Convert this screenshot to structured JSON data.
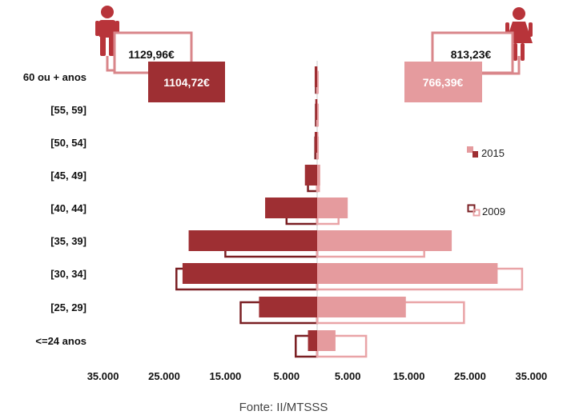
{
  "chart_data": {
    "type": "bar",
    "orientation": "horizontal-population-pyramid",
    "categories": [
      "<=24 anos",
      "[25, 29]",
      "[30, 34]",
      "[35, 39]",
      "[40, 44]",
      "[45, 49]",
      "[50, 54]",
      "[55, 59]",
      "60 ou + anos"
    ],
    "series": [
      {
        "name": "2015",
        "group": "homens",
        "values": [
          1500,
          9500,
          22000,
          21000,
          8500,
          2000,
          400,
          300,
          400
        ]
      },
      {
        "name": "2009",
        "group": "homens",
        "values": [
          3500,
          12500,
          23000,
          15000,
          5000,
          1500,
          300,
          200,
          200
        ]
      },
      {
        "name": "2015",
        "group": "mulheres",
        "values": [
          3000,
          14500,
          29500,
          22000,
          5000,
          500,
          200,
          100,
          100
        ]
      },
      {
        "name": "2009",
        "group": "mulheres",
        "values": [
          8000,
          24000,
          33500,
          17500,
          3500,
          300,
          100,
          100,
          100
        ]
      }
    ],
    "xlim": [
      -35000,
      35000
    ],
    "x_tick_labels": [
      "35.000",
      "25.000",
      "15.000",
      "5.000",
      "5.000",
      "15.000",
      "25.000",
      "35.000"
    ],
    "x_ticks": [
      -35000,
      -25000,
      -15000,
      -5000,
      5000,
      15000,
      25000,
      35000
    ],
    "legend": {
      "items": [
        "2015",
        "2009"
      ],
      "placement": "right"
    },
    "annotations": {
      "homens_2009": "1129,96€",
      "homens_2015": "1104,72€",
      "mulheres_2009": "813,23€",
      "mulheres_2015": "766,39€"
    },
    "source": "Fonte: II/MTSSS"
  },
  "colors": {
    "homens_2015": "#9e2f33",
    "homens_2009": "#7a1f23",
    "mulheres_2015": "#e59b9e",
    "mulheres_2009": "#e9a4a7",
    "axis": "#cccccc"
  },
  "icons": [
    "male-person-icon",
    "female-person-icon"
  ]
}
